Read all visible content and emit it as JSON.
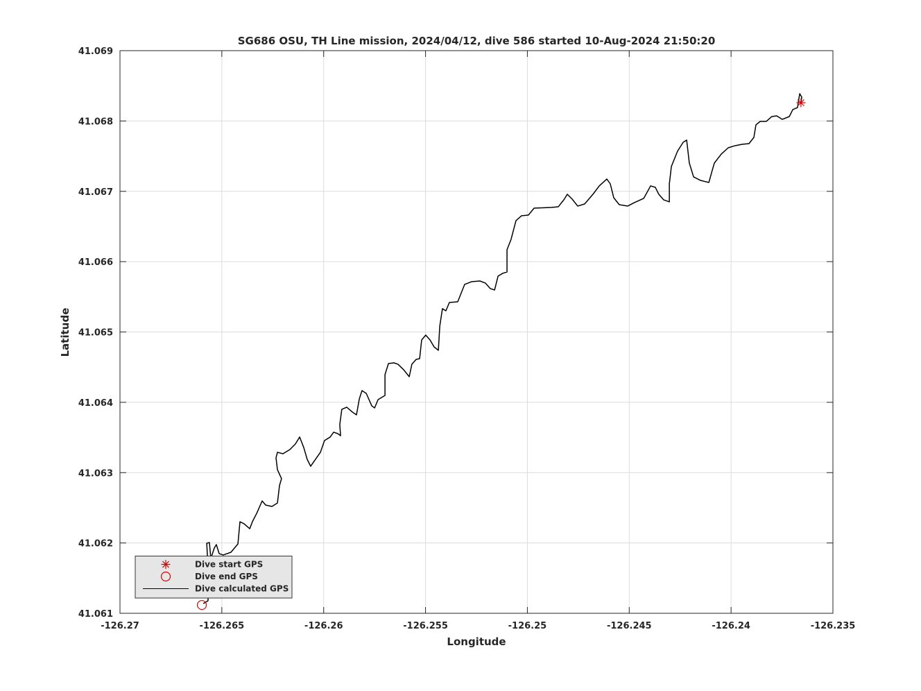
{
  "chart_data": {
    "type": "line",
    "title": "SG686 OSU, TH Line mission, 2024/04/12, dive 586 started 10-Aug-2024 21:50:20",
    "xlabel": "Longitude",
    "ylabel": "Latitude",
    "xlim": [
      -126.27,
      -126.235
    ],
    "xticks": [
      -126.27,
      -126.265,
      -126.26,
      -126.255,
      -126.25,
      -126.245,
      -126.24,
      -126.235
    ],
    "ylim": [
      41.061,
      41.069
    ],
    "yticks": [
      41.061,
      41.062,
      41.063,
      41.064,
      41.065,
      41.066,
      41.067,
      41.068,
      41.069
    ],
    "grid": true,
    "legend": "lower left",
    "series": [
      {
        "name": "Dive start GPS",
        "color": "#e00000",
        "marker": "asterisk",
        "x": [
          -126.23657
        ],
        "values": [
          41.06826
        ]
      },
      {
        "name": "Dive end GPS",
        "color": "#e00000",
        "marker": "circle",
        "x": [
          -126.26598
        ],
        "values": [
          41.061118
        ]
      },
      {
        "name": "Dive calculated GPS",
        "color": "#000000",
        "marker": "line",
        "x": [
          -126.26591,
          -126.26568,
          -126.26564,
          -126.26571,
          -126.26574,
          -126.26561,
          -126.26554,
          -126.26537,
          -126.26527,
          -126.26513,
          -126.26493,
          -126.26455,
          -126.26421,
          -126.26411,
          -126.26391,
          -126.26363,
          -126.2635,
          -126.26329,
          -126.26302,
          -126.26285,
          -126.26254,
          -126.26227,
          -126.26217,
          -126.26207,
          -126.26227,
          -126.26234,
          -126.26227,
          -126.262,
          -126.26166,
          -126.26139,
          -126.26118,
          -126.26098,
          -126.26081,
          -126.26064,
          -126.2604,
          -126.26016,
          -126.25996,
          -126.25968,
          -126.25951,
          -126.25931,
          -126.25917,
          -126.25921,
          -126.25911,
          -126.25887,
          -126.25859,
          -126.25839,
          -126.25825,
          -126.25812,
          -126.25791,
          -126.25764,
          -126.2575,
          -126.25733,
          -126.25699,
          -126.25699,
          -126.25682,
          -126.25655,
          -126.25635,
          -126.25607,
          -126.2558,
          -126.25567,
          -126.25546,
          -126.25529,
          -126.25519,
          -126.25499,
          -126.25478,
          -126.25458,
          -126.25437,
          -126.2543,
          -126.25417,
          -126.254,
          -126.25383,
          -126.25342,
          -126.25308,
          -126.25274,
          -126.25233,
          -126.25206,
          -126.25182,
          -126.25161,
          -126.25144,
          -126.25121,
          -126.251,
          -126.251,
          -126.2508,
          -126.25056,
          -126.25029,
          -126.24995,
          -126.24967,
          -126.24882,
          -126.24848,
          -126.24821,
          -126.24804,
          -126.2478,
          -126.24753,
          -126.24719,
          -126.24678,
          -126.24647,
          -126.2461,
          -126.24593,
          -126.24576,
          -126.24549,
          -126.24508,
          -126.24474,
          -126.24429,
          -126.24395,
          -126.24372,
          -126.24355,
          -126.24331,
          -126.24303,
          -126.24303,
          -126.24293,
          -126.24263,
          -126.24235,
          -126.24218,
          -126.24205,
          -126.24184,
          -126.2415,
          -126.24109,
          -126.24092,
          -126.24082,
          -126.24048,
          -126.24014,
          -126.2398,
          -126.23946,
          -126.23912,
          -126.23888,
          -126.23878,
          -126.23857,
          -126.23827,
          -126.238,
          -126.23776,
          -126.23749,
          -126.23714,
          -126.23697,
          -126.23674,
          -126.23667,
          -126.23663,
          -126.23653,
          -126.23657
        ],
        "values": [
          41.061138,
          41.061178,
          41.061434,
          41.061829,
          41.061996,
          41.062006,
          41.061779,
          41.061927,
          41.061977,
          41.061848,
          41.061829,
          41.061868,
          41.061986,
          41.062302,
          41.062273,
          41.062203,
          41.062302,
          41.06242,
          41.062598,
          41.062539,
          41.062519,
          41.062568,
          41.062815,
          41.062914,
          41.063042,
          41.06321,
          41.063289,
          41.063269,
          41.063328,
          41.063407,
          41.063506,
          41.063358,
          41.06319,
          41.063091,
          41.06319,
          41.063289,
          41.063456,
          41.063506,
          41.063575,
          41.063555,
          41.063525,
          41.063683,
          41.0639,
          41.06393,
          41.063861,
          41.063821,
          41.064048,
          41.064166,
          41.064127,
          41.06395,
          41.06392,
          41.064038,
          41.064097,
          41.064393,
          41.064551,
          41.064561,
          41.064541,
          41.064462,
          41.064364,
          41.064541,
          41.06461,
          41.06462,
          41.064887,
          41.064956,
          41.064887,
          41.064788,
          41.064739,
          41.065084,
          41.065331,
          41.065301,
          41.065419,
          41.065429,
          41.065676,
          41.065715,
          41.065725,
          41.065695,
          41.065617,
          41.065597,
          41.065794,
          41.065834,
          41.065853,
          41.066169,
          41.066317,
          41.066583,
          41.066652,
          41.066662,
          41.066761,
          41.066771,
          41.066781,
          41.066879,
          41.066958,
          41.066889,
          41.06679,
          41.06682,
          41.066958,
          41.067077,
          41.067175,
          41.067106,
          41.066909,
          41.06681,
          41.06679,
          41.06684,
          41.066899,
          41.067077,
          41.067057,
          41.066958,
          41.066879,
          41.06685,
          41.067106,
          41.067353,
          41.06757,
          41.067698,
          41.067728,
          41.067402,
          41.067205,
          41.067155,
          41.067126,
          41.067303,
          41.067402,
          41.06753,
          41.067619,
          41.067649,
          41.067668,
          41.067678,
          41.067767,
          41.067945,
          41.067994,
          41.067994,
          41.068063,
          41.068073,
          41.068023,
          41.068063,
          41.068162,
          41.068191,
          41.068319,
          41.068388,
          41.068339,
          41.06826
        ]
      }
    ]
  }
}
